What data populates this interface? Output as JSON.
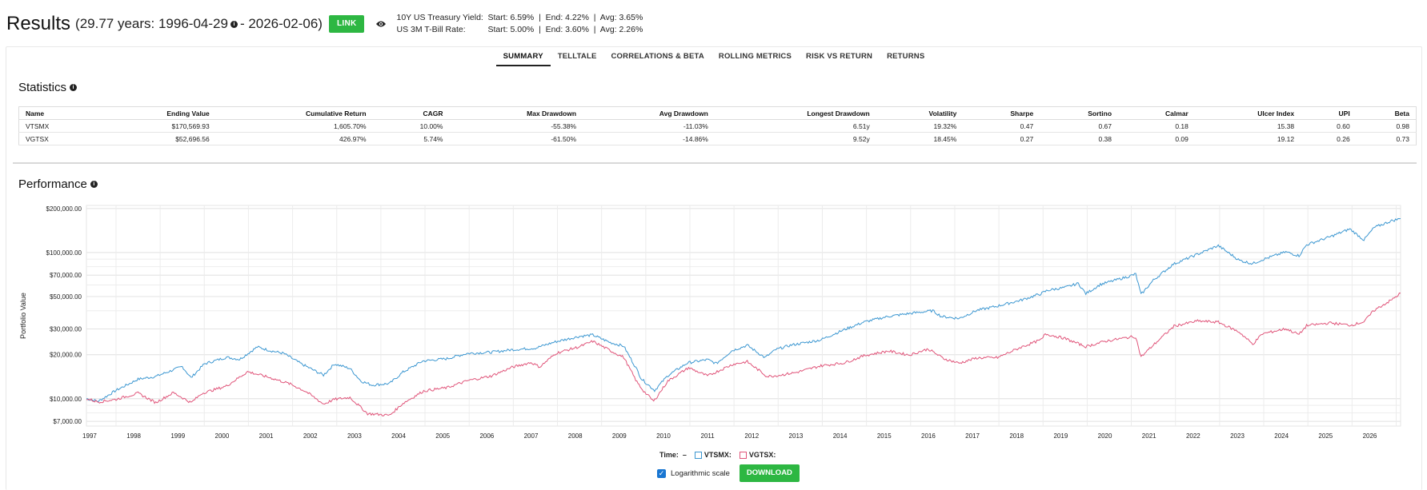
{
  "header": {
    "title": "Results",
    "range": "(29.77 years: 1996-04-29",
    "range_end": " - 2026-02-06)",
    "link_label": "LINK",
    "rates": [
      {
        "label": "10Y US Treasury Yield:",
        "value": "Start: 6.59%  |  End: 4.22%  |  Avg: 3.65%"
      },
      {
        "label": "US 3M T-Bill Rate:",
        "value": "Start: 5.00%  |  End: 3.60%  |  Avg: 2.26%"
      }
    ]
  },
  "tabs": [
    "SUMMARY",
    "TELLTALE",
    "CORRELATIONS & BETA",
    "ROLLING METRICS",
    "RISK VS RETURN",
    "RETURNS"
  ],
  "statistics": {
    "title": "Statistics",
    "columns": [
      "Name",
      "Ending Value",
      "Cumulative Return",
      "CAGR",
      "Max Drawdown",
      "Avg Drawdown",
      "Longest Drawdown",
      "Volatility",
      "Sharpe",
      "Sortino",
      "Calmar",
      "Ulcer Index",
      "UPI",
      "Beta"
    ],
    "rows": [
      [
        "VTSMX",
        "$170,569.93",
        "1,605.70%",
        "10.00%",
        "-55.38%",
        "-11.03%",
        "6.51y",
        "19.32%",
        "0.47",
        "0.67",
        "0.18",
        "15.38",
        "0.60",
        "0.98"
      ],
      [
        "VGTSX",
        "$52,696.56",
        "426.97%",
        "5.74%",
        "-61.50%",
        "-14.86%",
        "9.52y",
        "18.45%",
        "0.27",
        "0.38",
        "0.09",
        "19.12",
        "0.26",
        "0.73"
      ]
    ]
  },
  "performance": {
    "title": "Performance",
    "legend_time": "Time:  –",
    "log_label": "Logarithmic scale",
    "download_label": "DOWNLOAD"
  },
  "colors": {
    "vtsmx": "#3c97d1",
    "vgtsx": "#e0557a",
    "green": "#2db742"
  },
  "chart_data": {
    "type": "line",
    "ylabel": "Portfolio Value",
    "yscale": "log",
    "ylim": [
      6500,
      210000
    ],
    "yticks": [
      {
        "v": 7000,
        "label": "$7,000.00"
      },
      {
        "v": 10000,
        "label": "$10,000.00"
      },
      {
        "v": 20000,
        "label": "$20,000.00"
      },
      {
        "v": 30000,
        "label": "$30,000.00"
      },
      {
        "v": 50000,
        "label": "$50,000.00"
      },
      {
        "v": 70000,
        "label": "$70,000.00"
      },
      {
        "v": 100000,
        "label": "$100,000.00"
      },
      {
        "v": 200000,
        "label": "$200,000.00"
      }
    ],
    "xlim": [
      1996.33,
      2026.1
    ],
    "xticks": [
      "1997",
      "1998",
      "1999",
      "2000",
      "2001",
      "2002",
      "2003",
      "2004",
      "2005",
      "2006",
      "2007",
      "2008",
      "2009",
      "2010",
      "2011",
      "2012",
      "2013",
      "2014",
      "2015",
      "2016",
      "2017",
      "2018",
      "2019",
      "2020",
      "2021",
      "2022",
      "2023",
      "2024",
      "2025",
      "2026"
    ],
    "series": [
      {
        "name": "VTSMX:",
        "points": [
          [
            1996.33,
            10000
          ],
          [
            1996.6,
            9600
          ],
          [
            1997.0,
            11400
          ],
          [
            1997.5,
            13600
          ],
          [
            1997.9,
            14200
          ],
          [
            1998.5,
            16600
          ],
          [
            1998.7,
            13900
          ],
          [
            1999.0,
            17300
          ],
          [
            1999.5,
            19200
          ],
          [
            1999.8,
            18600
          ],
          [
            2000.2,
            22600
          ],
          [
            2000.5,
            21300
          ],
          [
            2000.8,
            20400
          ],
          [
            2001.2,
            17300
          ],
          [
            2001.7,
            14500
          ],
          [
            2001.95,
            17300
          ],
          [
            2002.3,
            16100
          ],
          [
            2002.55,
            13200
          ],
          [
            2002.8,
            12400
          ],
          [
            2003.2,
            12700
          ],
          [
            2003.5,
            15200
          ],
          [
            2003.95,
            18100
          ],
          [
            2004.5,
            18800
          ],
          [
            2004.95,
            20400
          ],
          [
            2005.5,
            20800
          ],
          [
            2005.95,
            21600
          ],
          [
            2006.5,
            22200
          ],
          [
            2006.95,
            24500
          ],
          [
            2007.5,
            26700
          ],
          [
            2007.8,
            27300
          ],
          [
            2008.2,
            24200
          ],
          [
            2008.5,
            22900
          ],
          [
            2008.8,
            15800
          ],
          [
            2008.9,
            13700
          ],
          [
            2009.2,
            11400
          ],
          [
            2009.5,
            14400
          ],
          [
            2009.95,
            17600
          ],
          [
            2010.4,
            18500
          ],
          [
            2010.6,
            17400
          ],
          [
            2010.95,
            21300
          ],
          [
            2011.3,
            23200
          ],
          [
            2011.7,
            19100
          ],
          [
            2011.95,
            21700
          ],
          [
            2012.3,
            23300
          ],
          [
            2012.95,
            25200
          ],
          [
            2013.5,
            29700
          ],
          [
            2013.95,
            33500
          ],
          [
            2014.5,
            36600
          ],
          [
            2014.95,
            38200
          ],
          [
            2015.5,
            40000
          ],
          [
            2015.7,
            36500
          ],
          [
            2016.1,
            35400
          ],
          [
            2016.5,
            40200
          ],
          [
            2016.95,
            42900
          ],
          [
            2017.5,
            47200
          ],
          [
            2017.95,
            52200
          ],
          [
            2018.1,
            55100
          ],
          [
            2018.5,
            57700
          ],
          [
            2018.8,
            61500
          ],
          [
            2018.97,
            52300
          ],
          [
            2019.3,
            60500
          ],
          [
            2019.95,
            68800
          ],
          [
            2020.1,
            71300
          ],
          [
            2020.22,
            51600
          ],
          [
            2020.5,
            64700
          ],
          [
            2020.95,
            83200
          ],
          [
            2021.5,
            97300
          ],
          [
            2021.97,
            111500
          ],
          [
            2022.45,
            88300
          ],
          [
            2022.75,
            84000
          ],
          [
            2022.95,
            89000
          ],
          [
            2023.5,
            101000
          ],
          [
            2023.8,
            95000
          ],
          [
            2023.97,
            113000
          ],
          [
            2024.5,
            128000
          ],
          [
            2024.95,
            145000
          ],
          [
            2025.27,
            122000
          ],
          [
            2025.5,
            148000
          ],
          [
            2025.9,
            165000
          ],
          [
            2026.1,
            170570
          ]
        ]
      },
      {
        "name": "VGTSX:",
        "points": [
          [
            1996.33,
            10000
          ],
          [
            1996.6,
            9500
          ],
          [
            1997.0,
            9900
          ],
          [
            1997.5,
            10900
          ],
          [
            1997.9,
            9400
          ],
          [
            1998.3,
            11000
          ],
          [
            1998.7,
            9400
          ],
          [
            1998.95,
            10900
          ],
          [
            1999.5,
            12200
          ],
          [
            1999.98,
            15300
          ],
          [
            2000.5,
            13900
          ],
          [
            2000.95,
            12600
          ],
          [
            2001.3,
            11200
          ],
          [
            2001.7,
            9200
          ],
          [
            2001.95,
            9900
          ],
          [
            2002.3,
            10200
          ],
          [
            2002.7,
            7900
          ],
          [
            2003.2,
            7700
          ],
          [
            2003.5,
            9300
          ],
          [
            2003.97,
            11300
          ],
          [
            2004.5,
            11900
          ],
          [
            2004.97,
            13300
          ],
          [
            2005.5,
            14300
          ],
          [
            2005.97,
            16400
          ],
          [
            2006.4,
            17700
          ],
          [
            2006.6,
            16500
          ],
          [
            2006.97,
            20500
          ],
          [
            2007.5,
            22700
          ],
          [
            2007.8,
            24700
          ],
          [
            2008.2,
            21300
          ],
          [
            2008.5,
            19200
          ],
          [
            2008.8,
            13000
          ],
          [
            2008.95,
            11300
          ],
          [
            2009.18,
            9600
          ],
          [
            2009.5,
            13200
          ],
          [
            2009.97,
            16300
          ],
          [
            2010.4,
            14300
          ],
          [
            2010.97,
            17200
          ],
          [
            2011.3,
            17900
          ],
          [
            2011.75,
            14200
          ],
          [
            2011.97,
            14400
          ],
          [
            2012.4,
            15100
          ],
          [
            2012.97,
            16800
          ],
          [
            2013.5,
            17600
          ],
          [
            2013.97,
            19800
          ],
          [
            2014.5,
            21200
          ],
          [
            2014.97,
            19900
          ],
          [
            2015.4,
            21900
          ],
          [
            2015.75,
            18800
          ],
          [
            2016.1,
            17500
          ],
          [
            2016.5,
            19000
          ],
          [
            2016.97,
            19100
          ],
          [
            2017.5,
            22500
          ],
          [
            2017.97,
            25400
          ],
          [
            2018.05,
            27800
          ],
          [
            2018.5,
            25800
          ],
          [
            2018.97,
            22700
          ],
          [
            2019.4,
            24700
          ],
          [
            2019.97,
            26400
          ],
          [
            2020.1,
            26500
          ],
          [
            2020.22,
            19300
          ],
          [
            2020.5,
            23300
          ],
          [
            2020.97,
            31400
          ],
          [
            2021.5,
            34000
          ],
          [
            2021.97,
            33400
          ],
          [
            2022.45,
            28500
          ],
          [
            2022.75,
            23600
          ],
          [
            2022.97,
            27800
          ],
          [
            2023.5,
            30100
          ],
          [
            2023.8,
            27500
          ],
          [
            2023.97,
            31600
          ],
          [
            2024.5,
            33000
          ],
          [
            2024.97,
            31800
          ],
          [
            2025.27,
            33600
          ],
          [
            2025.5,
            40200
          ],
          [
            2025.9,
            47500
          ],
          [
            2026.1,
            52697
          ]
        ]
      }
    ]
  }
}
